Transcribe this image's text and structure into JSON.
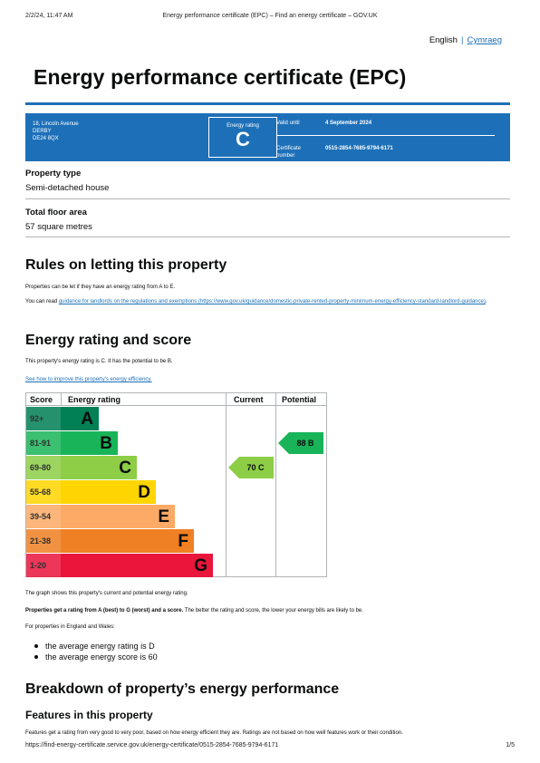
{
  "print_header": {
    "datetime": "2/2/24, 11:47 AM",
    "title": "Energy performance certificate (EPC) – Find an energy certificate – GOV.UK"
  },
  "language": {
    "english": "English",
    "cymraeg": "Cymraeg"
  },
  "page_title": "Energy performance certificate (EPC)",
  "summary": {
    "address_line1": "18, Lincoln Avenue",
    "address_line2": "DERBY",
    "postcode": "DE24 8QX",
    "rating_label": "Energy rating",
    "rating": "C",
    "valid_label": "Valid until",
    "valid_value": "4 September 2024",
    "cert_label_1": "Certificate",
    "cert_label_2": "number",
    "cert_value": "0515-2854-7685-9794-6171"
  },
  "property_type": {
    "label": "Property type",
    "value": "Semi-detached house"
  },
  "floor_area": {
    "label": "Total floor area",
    "value": "57 square metres"
  },
  "letting": {
    "heading": "Rules on letting this property",
    "p1": "Properties can be let if they have an energy rating from A to E.",
    "p2_prefix": "You can read ",
    "p2_link": "guidance for landlords on the regulations and exemptions (https://www.gov.uk/guidance/domestic-private-rented-property-minimum-energy-efficiency-standard-landlord-guidance)",
    "p2_suffix": "."
  },
  "rating_section": {
    "heading": "Energy rating and score",
    "p1": "This property's energy rating is C. It has the potential to be B.",
    "link": "See how to improve this property's energy efficiency."
  },
  "chart_data": {
    "type": "table",
    "headers": {
      "score": "Score",
      "rating": "Energy rating",
      "current": "Current",
      "potential": "Potential"
    },
    "bands": [
      {
        "score": "92+",
        "letter": "A",
        "color": "#008054",
        "text_color": "#0b0c0c"
      },
      {
        "score": "81-91",
        "letter": "B",
        "color": "#19b459",
        "text_color": "#0b0c0c"
      },
      {
        "score": "69-80",
        "letter": "C",
        "color": "#8dce46",
        "text_color": "#0b0c0c"
      },
      {
        "score": "55-68",
        "letter": "D",
        "color": "#ffd500",
        "text_color": "#0b0c0c"
      },
      {
        "score": "39-54",
        "letter": "E",
        "color": "#fcaa65",
        "text_color": "#0b0c0c"
      },
      {
        "score": "21-38",
        "letter": "F",
        "color": "#ef8023",
        "text_color": "#0b0c0c"
      },
      {
        "score": "1-20",
        "letter": "G",
        "color": "#e9153b",
        "text_color": "#0b0c0c"
      }
    ],
    "current": {
      "label": "70 C",
      "score": 70,
      "band": "C",
      "color": "#8dce46"
    },
    "potential": {
      "label": "88 B",
      "score": 88,
      "band": "B",
      "color": "#19b459"
    }
  },
  "after_chart": {
    "p1": "The graph shows this property's current and potential energy rating.",
    "p2_bold": "Properties get a rating from A (best) to G (worst) and a score.",
    "p2_rest": " The better the rating and score, the lower your energy bills are likely to be.",
    "p3": "For properties in England and Wales:",
    "bullets": [
      "the average energy rating is D",
      "the average energy score is 60"
    ]
  },
  "breakdown": {
    "heading": "Breakdown of property’s energy performance",
    "sub_heading": "Features in this property",
    "p1": "Features get a rating from very good to very poor, based on how energy efficient they are. Ratings are not based on how well features work or their condition."
  },
  "footer": {
    "url": "https://find-energy-certificate.service.gov.uk/energy-certificate/0515-2854-7685-9794-6171",
    "page": "1/5"
  }
}
